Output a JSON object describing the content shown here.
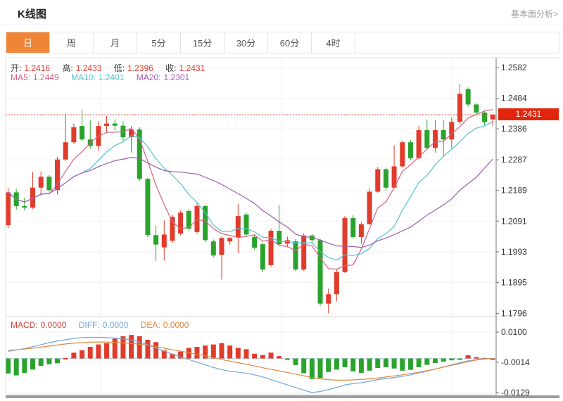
{
  "page": {
    "title": "K线图",
    "fundamental_link": "基本面分析>"
  },
  "tabs": {
    "items": [
      "日",
      "周",
      "月",
      "5分",
      "15分",
      "30分",
      "60分",
      "4时"
    ],
    "active_index": 0
  },
  "legend": {
    "open_label": "开:",
    "open": "1.2416",
    "high_label": "高:",
    "high": "1.2433",
    "low_label": "低:",
    "low": "1.2396",
    "close_label": "收:",
    "close": "1.2431",
    "ma5_label": "MA5:",
    "ma5": "1.2449",
    "ma10_label": "MA10:",
    "ma10": "1.2401",
    "ma20_label": "MA20:",
    "ma20": "1.2301"
  },
  "macd_legend": {
    "macd_label": "MACD:",
    "macd": "0.0000",
    "diff_label": "DIFF:",
    "diff": "0.0000",
    "dea_label": "DEA:",
    "dea": "0.0000"
  },
  "price_axis": {
    "labels": [
      "1.2582",
      "1.2484",
      "1.2386",
      "1.2287",
      "1.2189",
      "1.2091",
      "1.1993",
      "1.1895",
      "1.1796"
    ],
    "current": "1.2431"
  },
  "macd_axis": {
    "labels": [
      "0.0100",
      "-0.0014",
      "-0.0129"
    ]
  },
  "colors": {
    "up": "#e13b2b",
    "down": "#2aa32d",
    "tab_active": "#ef8536",
    "badge": "#e2250c",
    "dotted_line": "#e04332",
    "ma5": "#d75f86",
    "ma10": "#4fc4d3",
    "ma20": "#9f5aae",
    "diff": "#74a7d6",
    "dea": "#e0873c",
    "macd_text": "#c9453a",
    "label_text": "#333333",
    "value_text": "#e23b30",
    "grid": "#f2f2f2",
    "axis": "#777777"
  },
  "chart_data": {
    "type": "candlestick+macd",
    "title": "K线图 (日)",
    "price_panel": {
      "y_axis_ticks": [
        1.2582,
        1.2484,
        1.2386,
        1.2287,
        1.2189,
        1.2091,
        1.1993,
        1.1895,
        1.1796
      ],
      "current_price": 1.2431,
      "ma_periods": [
        5,
        10,
        20
      ],
      "ohlc": [
        [
          1.2078,
          1.2198,
          1.2068,
          1.2183
        ],
        [
          1.2183,
          1.2194,
          1.2127,
          1.2139
        ],
        [
          1.2139,
          1.2166,
          1.2125,
          1.2134
        ],
        [
          1.2134,
          1.2248,
          1.213,
          1.2198
        ],
        [
          1.2198,
          1.225,
          1.2172,
          1.2233
        ],
        [
          1.2233,
          1.2238,
          1.2185,
          1.219
        ],
        [
          1.219,
          1.2296,
          1.2176,
          1.2288
        ],
        [
          1.2288,
          1.2433,
          1.2283,
          1.2343
        ],
        [
          1.2343,
          1.2403,
          1.2338,
          1.2391
        ],
        [
          1.2395,
          1.2448,
          1.2346,
          1.2352
        ],
        [
          1.2352,
          1.2413,
          1.2322,
          1.2331
        ],
        [
          1.2331,
          1.2411,
          1.2316,
          1.2395
        ],
        [
          1.2395,
          1.2427,
          1.2374,
          1.2403
        ],
        [
          1.2403,
          1.2416,
          1.2382,
          1.2396
        ],
        [
          1.2396,
          1.241,
          1.2348,
          1.2359
        ],
        [
          1.2359,
          1.2395,
          1.231,
          1.2384
        ],
        [
          1.2384,
          1.2391,
          1.222,
          1.2226
        ],
        [
          1.2226,
          1.223,
          1.204,
          1.2046
        ],
        [
          1.2046,
          1.2076,
          1.1964,
          1.2016
        ],
        [
          1.2007,
          1.2093,
          1.1965,
          1.2048
        ],
        [
          1.2028,
          1.2112,
          1.202,
          1.2105
        ],
        [
          1.2051,
          1.2125,
          1.2045,
          1.2118
        ],
        [
          1.2123,
          1.213,
          1.206,
          1.2067
        ],
        [
          1.2056,
          1.2148,
          1.205,
          1.2139
        ],
        [
          1.2139,
          1.2143,
          1.2024,
          1.203
        ],
        [
          1.2026,
          1.2032,
          1.1975,
          1.1981
        ],
        [
          1.1983,
          1.2042,
          1.1904,
          1.2037
        ],
        [
          1.2026,
          1.204,
          1.2015,
          1.2037
        ],
        [
          1.204,
          1.2146,
          1.1988,
          1.2107
        ],
        [
          1.2112,
          1.2118,
          1.2042,
          1.2048
        ],
        [
          1.204,
          1.2048,
          1.2,
          1.2006
        ],
        [
          1.2017,
          1.2022,
          1.1927,
          1.1936
        ],
        [
          1.195,
          1.2066,
          1.1944,
          1.206
        ],
        [
          1.206,
          1.2142,
          1.2012,
          1.2017
        ],
        [
          1.2019,
          1.2041,
          1.2007,
          1.203
        ],
        [
          1.2026,
          1.2033,
          1.1932,
          1.1936
        ],
        [
          1.1936,
          1.2052,
          1.1932,
          1.2045
        ],
        [
          1.2045,
          1.2049,
          1.2018,
          1.203
        ],
        [
          1.203,
          1.2034,
          1.182,
          1.1827
        ],
        [
          1.1827,
          1.1875,
          1.1796,
          1.1857
        ],
        [
          1.1857,
          1.1939,
          1.1834,
          1.1928
        ],
        [
          1.1928,
          1.2108,
          1.1925,
          1.2101
        ],
        [
          1.2101,
          1.211,
          1.2035,
          1.204
        ],
        [
          1.204,
          1.2088,
          1.2018,
          1.2081
        ],
        [
          1.2081,
          1.2196,
          1.208,
          1.2185
        ],
        [
          1.2185,
          1.2264,
          1.2182,
          1.2257
        ],
        [
          1.2257,
          1.2262,
          1.2188,
          1.2198
        ],
        [
          1.2198,
          1.2333,
          1.2194,
          1.2266
        ],
        [
          1.2266,
          1.2348,
          1.2262,
          1.2343
        ],
        [
          1.2343,
          1.235,
          1.2286,
          1.2292
        ],
        [
          1.2292,
          1.2395,
          1.2288,
          1.2382
        ],
        [
          1.2382,
          1.2415,
          1.2322,
          1.2325
        ],
        [
          1.2325,
          1.2413,
          1.231,
          1.2382
        ],
        [
          1.2382,
          1.2413,
          1.2296,
          1.2352
        ],
        [
          1.2352,
          1.2423,
          1.2325,
          1.2408
        ],
        [
          1.2408,
          1.2528,
          1.24,
          1.2498
        ],
        [
          1.2513,
          1.2518,
          1.2457,
          1.2464
        ],
        [
          1.2464,
          1.2468,
          1.243,
          1.2438
        ],
        [
          1.2438,
          1.2443,
          1.2398,
          1.2408
        ],
        [
          1.2416,
          1.2433,
          1.2396,
          1.2431
        ]
      ]
    },
    "macd_panel": {
      "y_axis_ticks": [
        0.01,
        -0.0014,
        -0.0129
      ],
      "histogram": [
        -0.0057,
        -0.0064,
        -0.0055,
        -0.0042,
        -0.0028,
        -0.0022,
        -0.0018,
        0.0002,
        0.0022,
        0.0031,
        0.0044,
        0.0053,
        0.0058,
        0.0075,
        0.0084,
        0.0089,
        0.0084,
        0.0071,
        0.0062,
        0.0031,
        0.0018,
        0.0026,
        0.004,
        0.0044,
        0.0049,
        0.0053,
        0.0058,
        0.0049,
        0.004,
        0.0035,
        0.0018,
        0.0013,
        0.0022,
        0.0009,
        -0.0004,
        -0.0025,
        -0.0056,
        -0.0078,
        -0.0074,
        -0.0051,
        -0.0042,
        -0.0033,
        -0.0049,
        -0.0055,
        -0.0046,
        -0.0036,
        -0.0033,
        -0.0038,
        -0.0046,
        -0.0043,
        -0.0033,
        -0.0024,
        -0.0017,
        -0.0012,
        -0.0007,
        -0.0004,
        0.0012,
        0.0005,
        0.0002,
        0.0
      ],
      "diff": [
        0.0027,
        0.0032,
        0.0038,
        0.0045,
        0.0052,
        0.006,
        0.0066,
        0.0071,
        0.0076,
        0.0079,
        0.008,
        0.008,
        0.0079,
        0.0077,
        0.0074,
        0.007,
        0.0063,
        0.0052,
        0.004,
        0.0028,
        0.0016,
        0.0006,
        -0.0004,
        -0.0014,
        -0.0024,
        -0.0034,
        -0.0042,
        -0.0048,
        -0.0052,
        -0.0056,
        -0.0062,
        -0.007,
        -0.008,
        -0.009,
        -0.01,
        -0.011,
        -0.012,
        -0.0129,
        -0.0125,
        -0.0118,
        -0.011,
        -0.01,
        -0.0095,
        -0.0092,
        -0.0086,
        -0.008,
        -0.0076,
        -0.0072,
        -0.0068,
        -0.0062,
        -0.0055,
        -0.0048,
        -0.004,
        -0.0032,
        -0.0024,
        -0.0016,
        -0.0009,
        -0.0004,
        -0.0001,
        0.0
      ],
      "dea": [
        0.0031,
        0.0033,
        0.0036,
        0.0039,
        0.0043,
        0.0047,
        0.0051,
        0.0055,
        0.0058,
        0.006,
        0.0062,
        0.0062,
        0.0062,
        0.0061,
        0.0059,
        0.0057,
        0.0054,
        0.005,
        0.0045,
        0.0039,
        0.0033,
        0.0028,
        0.0022,
        0.0016,
        0.001,
        0.0003,
        -0.0004,
        -0.001,
        -0.0016,
        -0.0022,
        -0.0028,
        -0.0035,
        -0.0041,
        -0.0047,
        -0.0053,
        -0.0059,
        -0.0066,
        -0.0072,
        -0.0077,
        -0.008,
        -0.0082,
        -0.0082,
        -0.0081,
        -0.0079,
        -0.0077,
        -0.0074,
        -0.007,
        -0.0066,
        -0.0062,
        -0.0057,
        -0.0052,
        -0.0046,
        -0.004,
        -0.0033,
        -0.0026,
        -0.0019,
        -0.0012,
        -0.0006,
        -0.0002,
        0.0
      ]
    }
  }
}
